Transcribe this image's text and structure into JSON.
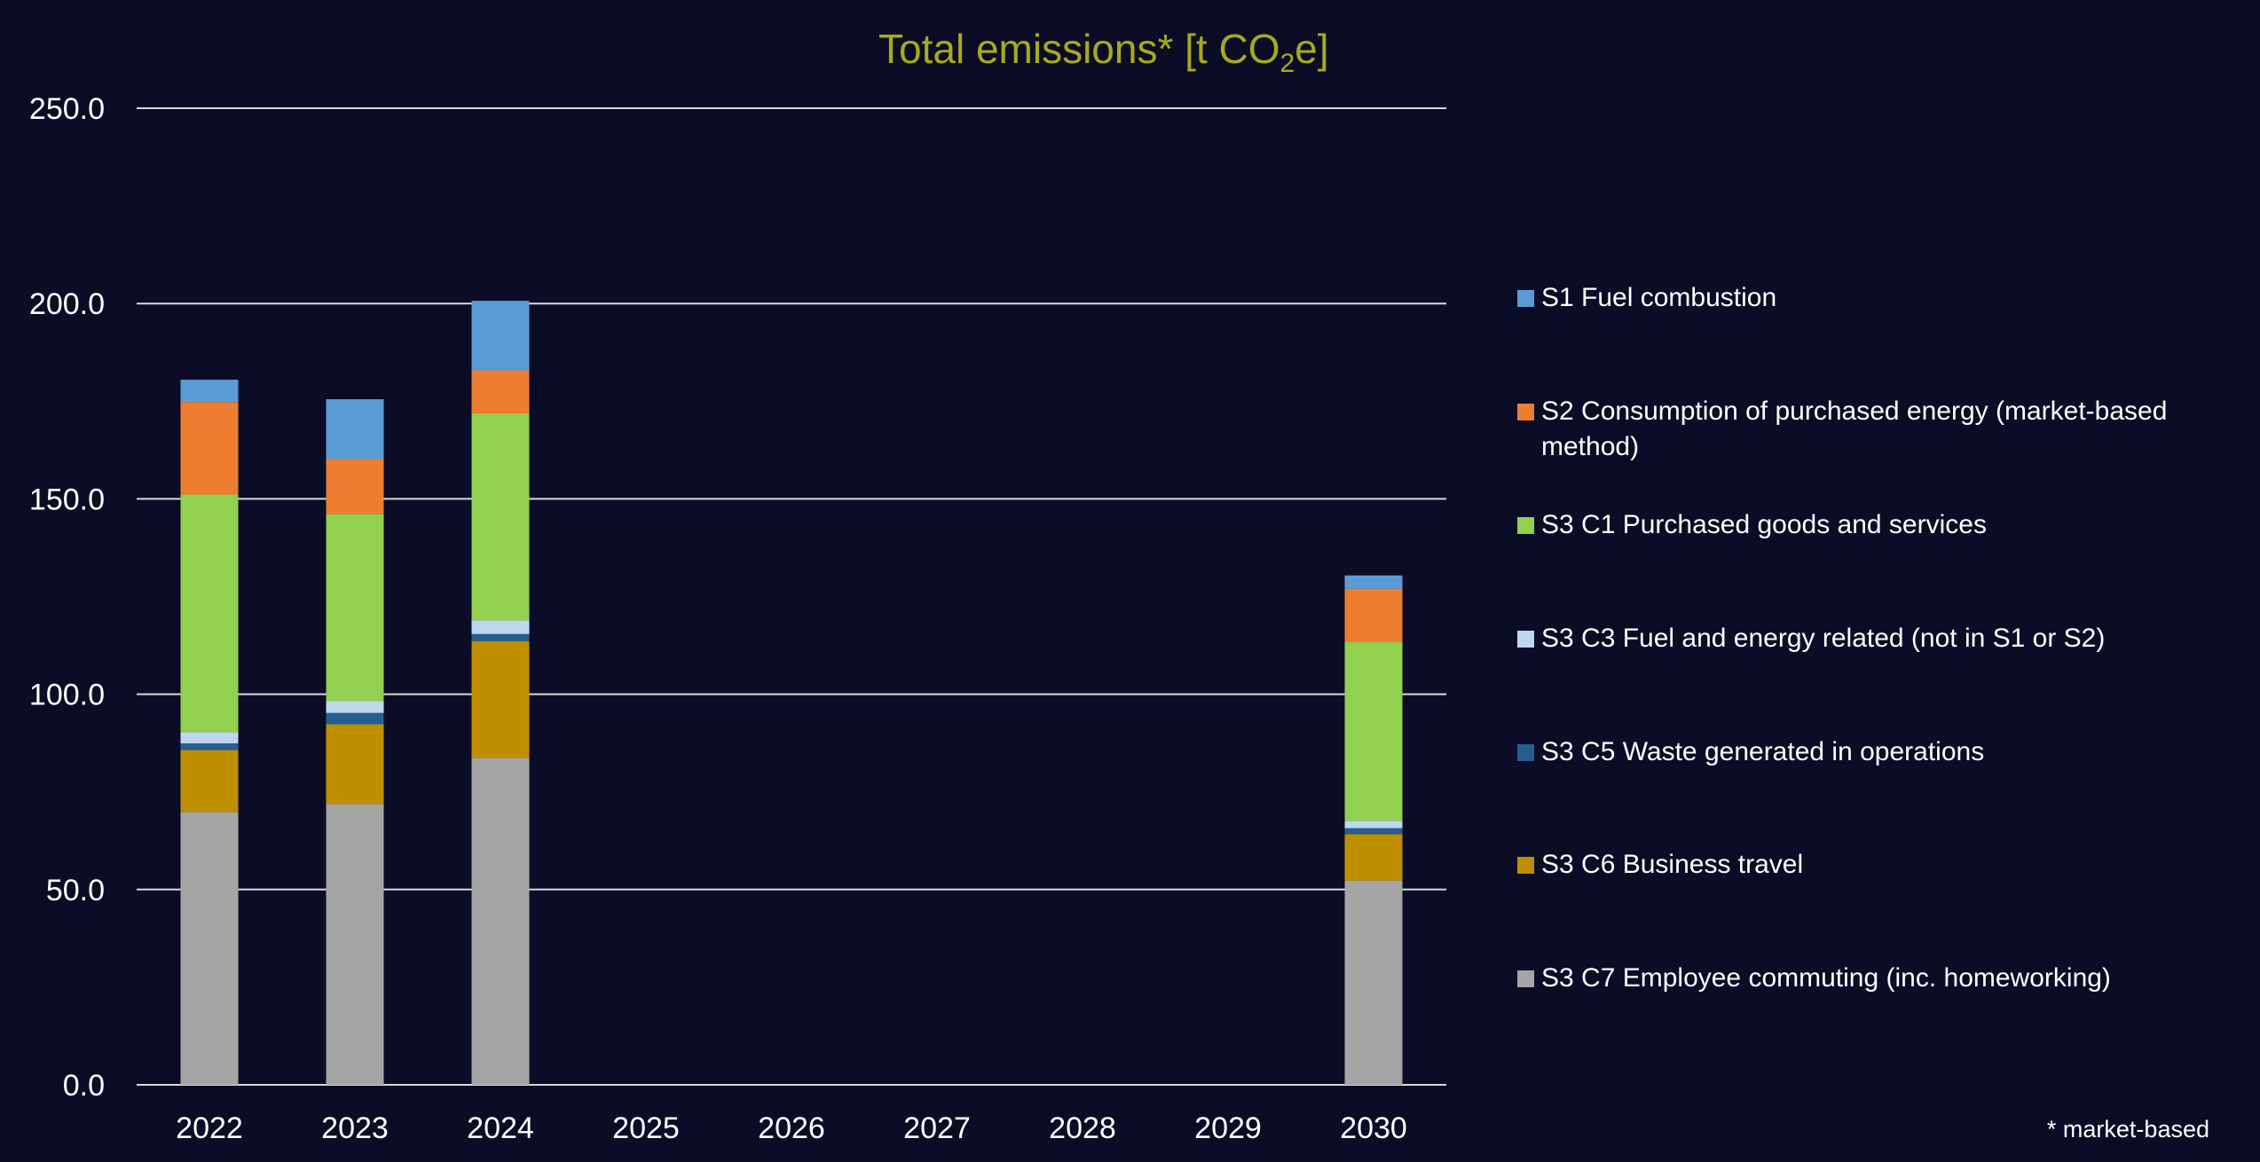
{
  "chart_data": {
    "type": "bar",
    "stacked": true,
    "title": "Total emissions* [t CO2e]",
    "title_parts": {
      "main": "Total emissions* [t CO",
      "sub": "2",
      "tail": "e]"
    },
    "xlabel": "",
    "ylabel": "",
    "ylim": [
      0,
      250
    ],
    "yticks": [
      "0.0",
      "50.0",
      "100.0",
      "150.0",
      "200.0",
      "250.0"
    ],
    "ytick_values": [
      0,
      50,
      100,
      150,
      200,
      250
    ],
    "grid": true,
    "legend_position": "right",
    "categories": [
      "2022",
      "2023",
      "2024",
      "2025",
      "2026",
      "2027",
      "2028",
      "2029",
      "2030"
    ],
    "series": [
      {
        "name": "S3 C7 Employee commuting (inc. homeworking)",
        "color": "#a5a5a5",
        "values": [
          69.8,
          71.9,
          83.7,
          null,
          null,
          null,
          null,
          null,
          52.3
        ]
      },
      {
        "name": "S3 C6 Business travel",
        "color": "#bf8f00",
        "values": [
          15.9,
          20.4,
          29.9,
          null,
          null,
          null,
          null,
          null,
          11.9
        ]
      },
      {
        "name": "S3 C5 Waste generated in operations",
        "color": "#255e91",
        "values": [
          1.7,
          2.9,
          1.8,
          null,
          null,
          null,
          null,
          null,
          1.5
        ]
      },
      {
        "name": "S3 C3 Fuel and energy related (not in S1 or S2)",
        "color": "#bdd7ee",
        "values": [
          2.9,
          3.1,
          3.5,
          null,
          null,
          null,
          null,
          null,
          1.9
        ]
      },
      {
        "name": "S3 C1 Purchased goods and services",
        "color": "#92d050",
        "values": [
          60.8,
          47.8,
          53.0,
          null,
          null,
          null,
          null,
          null,
          45.7
        ]
      },
      {
        "name": "S2 Consumption of purchased energy (market-based method)",
        "color": "#ed7d31",
        "values": [
          23.7,
          14.1,
          11.0,
          null,
          null,
          null,
          null,
          null,
          13.7
        ]
      },
      {
        "name": "S1 Fuel combustion",
        "color": "#5b9bd5",
        "values": [
          5.7,
          15.3,
          17.8,
          null,
          null,
          null,
          null,
          null,
          3.4
        ]
      }
    ],
    "legend_order": [
      6,
      5,
      4,
      3,
      2,
      1,
      0
    ],
    "footnote": "* market-based"
  },
  "colors": {
    "background": "#0b0d26",
    "title": "#a8aa1e",
    "gridline": "#d9d9d9",
    "text": "#ffffff"
  }
}
